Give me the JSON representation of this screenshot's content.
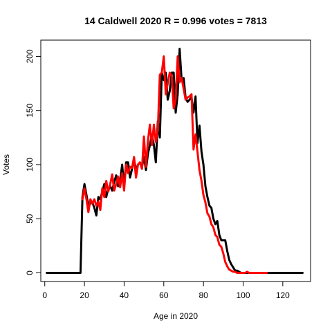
{
  "chart_data": {
    "type": "line",
    "title": "14 Caldwell 2020 R = 0.996 votes = 7813",
    "xlabel": "Age in 2020",
    "ylabel": "Votes",
    "xlim": [
      -2,
      134
    ],
    "ylim": [
      -8,
      215
    ],
    "xticks": [
      0,
      20,
      40,
      60,
      80,
      100,
      120
    ],
    "yticks": [
      0,
      50,
      100,
      150,
      200
    ],
    "grid": false,
    "series": [
      {
        "color": "#000000",
        "x": [
          1,
          2,
          3,
          4,
          5,
          6,
          7,
          8,
          9,
          10,
          11,
          12,
          13,
          14,
          15,
          16,
          17,
          18,
          19,
          20,
          21,
          22,
          23,
          24,
          25,
          26,
          27,
          28,
          29,
          30,
          31,
          32,
          33,
          34,
          35,
          36,
          37,
          38,
          39,
          40,
          41,
          42,
          43,
          44,
          45,
          46,
          47,
          48,
          49,
          50,
          51,
          52,
          53,
          54,
          55,
          56,
          57,
          58,
          59,
          60,
          61,
          62,
          63,
          64,
          65,
          66,
          67,
          68,
          69,
          70,
          71,
          72,
          73,
          74,
          75,
          76,
          77,
          78,
          79,
          80,
          81,
          82,
          83,
          84,
          85,
          86,
          87,
          88,
          89,
          90,
          91,
          92,
          93,
          94,
          95,
          96,
          97,
          98,
          99,
          100,
          101,
          102,
          103,
          104,
          105,
          106,
          107,
          108,
          109,
          110,
          111,
          112,
          113,
          114,
          115,
          116,
          117,
          118,
          119,
          120,
          121,
          122,
          123,
          124,
          125,
          126,
          127,
          128,
          129,
          130
        ],
        "y": [
          0,
          0,
          0,
          0,
          0,
          0,
          0,
          0,
          0,
          0,
          0,
          0,
          0,
          0,
          0,
          0,
          0,
          0,
          70,
          82,
          72,
          62,
          64,
          65,
          60,
          53,
          70,
          68,
          75,
          82,
          70,
          78,
          80,
          76,
          84,
          90,
          80,
          85,
          100,
          80,
          102,
          102,
          88,
          96,
          105,
          95,
          100,
          102,
          98,
          107,
          95,
          110,
          118,
          128,
          118,
          102,
          140,
          125,
          185,
          178,
          185,
          160,
          168,
          185,
          185,
          148,
          165,
          207,
          178,
          180,
          162,
          158,
          160,
          162,
          148,
          163,
          120,
          136,
          112,
          100,
          80,
          70,
          62,
          60,
          50,
          45,
          48,
          35,
          30,
          30,
          30,
          20,
          12,
          8,
          5,
          2,
          2,
          1,
          0,
          0,
          0,
          0,
          0,
          0,
          0,
          0,
          0,
          0,
          0,
          0,
          0,
          0,
          0,
          0,
          0,
          0,
          0,
          0,
          0,
          0,
          0,
          0,
          0,
          0,
          0,
          0,
          0,
          0,
          0,
          0
        ]
      },
      {
        "color": "#ff0000",
        "x": [
          19,
          20,
          21,
          22,
          23,
          24,
          25,
          26,
          27,
          28,
          29,
          30,
          31,
          32,
          33,
          34,
          35,
          36,
          37,
          38,
          39,
          40,
          41,
          42,
          43,
          44,
          45,
          46,
          47,
          48,
          49,
          50,
          51,
          52,
          53,
          54,
          55,
          56,
          57,
          58,
          59,
          60,
          61,
          62,
          63,
          64,
          65,
          66,
          67,
          68,
          69,
          70,
          71,
          72,
          73,
          74,
          75,
          76,
          77,
          78,
          79,
          80,
          81,
          82,
          83,
          84,
          85,
          86,
          87,
          88,
          89,
          90,
          91,
          92,
          93,
          94,
          95,
          96,
          97,
          98,
          99,
          100,
          101,
          102,
          103,
          104,
          105,
          106,
          107,
          108,
          109,
          110,
          111,
          112
        ],
        "y": [
          68,
          78,
          68,
          56,
          68,
          64,
          68,
          62,
          66,
          58,
          78,
          70,
          85,
          75,
          82,
          91,
          76,
          82,
          89,
          79,
          92,
          76,
          100,
          92,
          98,
          97,
          107,
          88,
          100,
          102,
          96,
          126,
          98,
          122,
          137,
          118,
          137,
          121,
          132,
          183,
          185,
          200,
          165,
          175,
          185,
          182,
          152,
          160,
          200,
          176,
          180,
          170,
          160,
          162,
          163,
          165,
          114,
          128,
          112,
          95,
          85,
          72,
          65,
          55,
          52,
          45,
          42,
          35,
          33,
          26,
          24,
          18,
          10,
          6,
          3,
          2,
          1,
          1,
          0,
          0,
          0,
          0,
          0,
          1,
          0,
          0,
          0,
          0,
          0,
          0,
          0,
          0,
          0,
          0
        ]
      }
    ]
  }
}
